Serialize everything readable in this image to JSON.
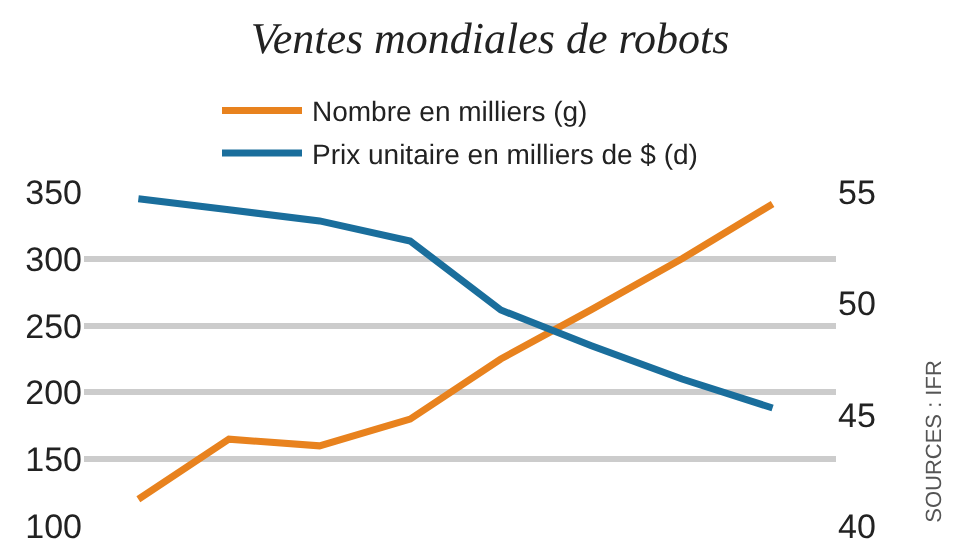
{
  "chart_data": {
    "type": "line",
    "title": "Ventes mondiales de robots",
    "categories": [
      null,
      null,
      null,
      null,
      null,
      null,
      null,
      null
    ],
    "series": [
      {
        "name": "Nombre en milliers (g)",
        "color": "#e8821e",
        "values": [
          120,
          165,
          160,
          180,
          225,
          262,
          300,
          341
        ]
      },
      {
        "name": "Prix unitaire en milliers de $ (d)",
        "color": "#1a6e9c",
        "axis": "y2",
        "values": [
          54.7,
          54.2,
          53.7,
          52.8,
          49.7,
          48.1,
          46.6,
          45.3
        ]
      }
    ],
    "ylim": [
      100,
      350
    ],
    "yticks": [
      100,
      150,
      200,
      250,
      300,
      350
    ],
    "y2lim": [
      40,
      55
    ],
    "y2ticks": [
      40,
      45,
      50,
      55
    ],
    "grid": "y",
    "legend": "top",
    "marker": "none",
    "line_style": "solid",
    "annotations": [
      "SOURCES : IFR"
    ]
  }
}
